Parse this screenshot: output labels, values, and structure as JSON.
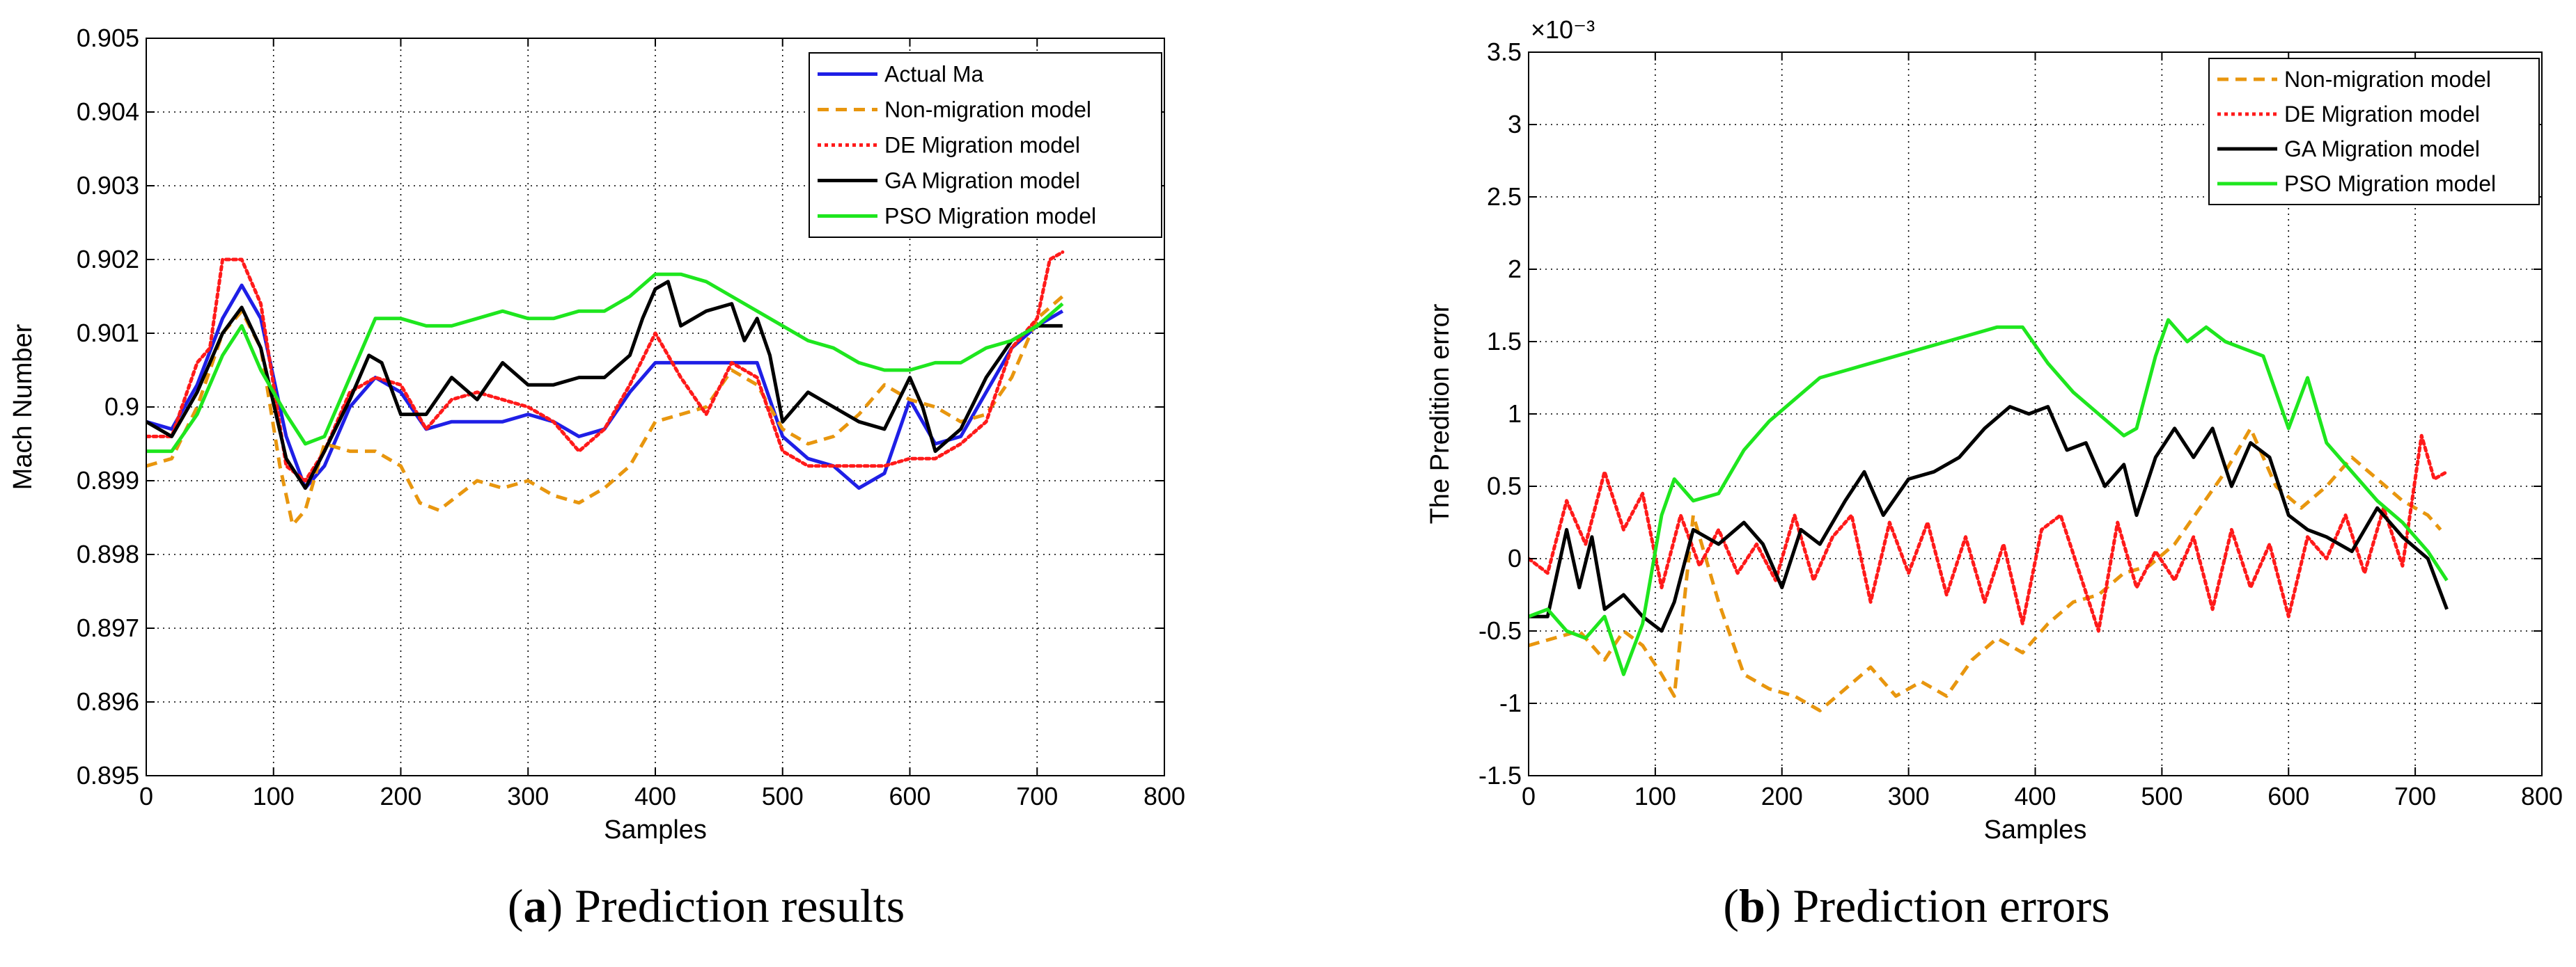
{
  "colors": {
    "actual": "#1f1fe6",
    "non_migration": "#e8960e",
    "de": "#ff1a1a",
    "ga": "#000000",
    "pso": "#1ee61e"
  },
  "chart_data": [
    {
      "type": "line",
      "panel": "a",
      "caption_letter": "a",
      "caption_title": " Prediction results",
      "xlabel": "Samples",
      "ylabel": "Mach Number",
      "xlim": [
        0,
        800
      ],
      "ylim": [
        0.895,
        0.905
      ],
      "xticks": [
        0,
        100,
        200,
        300,
        400,
        500,
        600,
        700,
        800
      ],
      "xtick_labels": [
        "0",
        "100",
        "200",
        "300",
        "400",
        "500",
        "600",
        "700",
        "800"
      ],
      "yticks": [
        0.895,
        0.896,
        0.897,
        0.898,
        0.899,
        0.9,
        0.901,
        0.902,
        0.903,
        0.904,
        0.905
      ],
      "ytick_labels": [
        "0.895",
        "0.896",
        "0.897",
        "0.898",
        "0.899",
        "0.9",
        "0.901",
        "0.902",
        "0.903",
        "0.904",
        "0.905"
      ],
      "exponent_label": "",
      "grid": true,
      "legend_position": "top-right",
      "series": [
        {
          "name": "Actual Ma",
          "color_key": "actual",
          "style": "solid",
          "x": [
            0,
            20,
            40,
            60,
            75,
            90,
            110,
            125,
            140,
            160,
            180,
            200,
            220,
            240,
            260,
            280,
            300,
            320,
            340,
            360,
            380,
            400,
            420,
            440,
            460,
            480,
            500,
            520,
            540,
            560,
            580,
            600,
            620,
            640,
            660,
            680,
            700,
            720
          ],
          "y": [
            0.8998,
            0.8997,
            0.9003,
            0.9012,
            0.90165,
            0.9012,
            0.8996,
            0.8989,
            0.8992,
            0.9,
            0.9004,
            0.9002,
            0.8997,
            0.8998,
            0.8998,
            0.8998,
            0.8999,
            0.8998,
            0.8996,
            0.8997,
            0.9002,
            0.9006,
            0.9006,
            0.9006,
            0.9006,
            0.9006,
            0.8996,
            0.8993,
            0.8992,
            0.8989,
            0.8991,
            0.9001,
            0.8995,
            0.8996,
            0.9002,
            0.9008,
            0.9011,
            0.9013
          ]
        },
        {
          "name": "Non-migration model",
          "color_key": "non_migration",
          "style": "dashed",
          "x": [
            0,
            20,
            40,
            60,
            75,
            90,
            105,
            115,
            125,
            140,
            160,
            180,
            200,
            215,
            230,
            260,
            280,
            300,
            320,
            340,
            360,
            380,
            400,
            420,
            440,
            460,
            480,
            500,
            520,
            540,
            560,
            580,
            600,
            620,
            640,
            660,
            680,
            700,
            720
          ],
          "y": [
            0.8992,
            0.8993,
            0.9,
            0.901,
            0.9013,
            0.9008,
            0.8992,
            0.8984,
            0.8986,
            0.8995,
            0.8994,
            0.8994,
            0.8992,
            0.8987,
            0.8986,
            0.899,
            0.8989,
            0.899,
            0.8988,
            0.8987,
            0.8989,
            0.8992,
            0.8998,
            0.8999,
            0.9,
            0.9005,
            0.9003,
            0.8997,
            0.8995,
            0.8996,
            0.8999,
            0.9003,
            0.9001,
            0.9,
            0.8998,
            0.8999,
            0.9004,
            0.9012,
            0.9015
          ]
        },
        {
          "name": "DE Migration model",
          "color_key": "de",
          "style": "dotted",
          "x": [
            0,
            20,
            40,
            50,
            60,
            75,
            90,
            110,
            125,
            140,
            160,
            180,
            200,
            220,
            240,
            260,
            280,
            300,
            320,
            340,
            360,
            380,
            400,
            410,
            420,
            440,
            460,
            480,
            500,
            520,
            540,
            560,
            580,
            600,
            620,
            640,
            660,
            680,
            700,
            710,
            720
          ],
          "y": [
            0.8996,
            0.8996,
            0.9006,
            0.9008,
            0.902,
            0.902,
            0.9014,
            0.8992,
            0.899,
            0.8994,
            0.9002,
            0.9004,
            0.9003,
            0.8997,
            0.9001,
            0.9002,
            0.9001,
            0.9,
            0.8998,
            0.8994,
            0.8997,
            0.9003,
            0.901,
            0.9007,
            0.9004,
            0.8999,
            0.9006,
            0.9004,
            0.8994,
            0.8992,
            0.8992,
            0.8992,
            0.8992,
            0.8993,
            0.8993,
            0.8995,
            0.8998,
            0.9008,
            0.9012,
            0.902,
            0.9021
          ]
        },
        {
          "name": "GA Migration model",
          "color_key": "ga",
          "style": "solid",
          "x": [
            0,
            20,
            40,
            60,
            75,
            90,
            110,
            125,
            140,
            160,
            175,
            185,
            200,
            220,
            240,
            260,
            280,
            300,
            320,
            340,
            360,
            380,
            390,
            400,
            410,
            420,
            440,
            460,
            470,
            480,
            490,
            500,
            520,
            540,
            560,
            580,
            600,
            610,
            620,
            640,
            660,
            680,
            700,
            720
          ],
          "y": [
            0.8998,
            0.8996,
            0.9002,
            0.901,
            0.90135,
            0.9008,
            0.8993,
            0.8989,
            0.8994,
            0.9001,
            0.9007,
            0.9006,
            0.8999,
            0.8999,
            0.9004,
            0.9001,
            0.9006,
            0.9003,
            0.9003,
            0.9004,
            0.9004,
            0.9007,
            0.9012,
            0.9016,
            0.9017,
            0.9011,
            0.9013,
            0.9014,
            0.9009,
            0.9012,
            0.9007,
            0.8998,
            0.9002,
            0.9,
            0.8998,
            0.8997,
            0.9004,
            0.9,
            0.8994,
            0.8997,
            0.9004,
            0.9009,
            0.9011,
            0.9011
          ]
        },
        {
          "name": "PSO Migration model",
          "color_key": "pso",
          "style": "solid",
          "x": [
            0,
            20,
            40,
            60,
            75,
            90,
            110,
            125,
            140,
            160,
            180,
            200,
            220,
            240,
            260,
            280,
            300,
            320,
            340,
            360,
            380,
            400,
            420,
            440,
            460,
            480,
            500,
            520,
            540,
            560,
            580,
            600,
            620,
            640,
            660,
            680,
            700,
            720
          ],
          "y": [
            0.8994,
            0.8994,
            0.8999,
            0.9007,
            0.9011,
            0.9005,
            0.8999,
            0.8995,
            0.8996,
            0.9004,
            0.9012,
            0.9012,
            0.9011,
            0.9011,
            0.9012,
            0.9013,
            0.9012,
            0.9012,
            0.9013,
            0.9013,
            0.9015,
            0.9018,
            0.9018,
            0.9017,
            0.9015,
            0.9013,
            0.9011,
            0.9009,
            0.9008,
            0.9006,
            0.9005,
            0.9005,
            0.9006,
            0.9006,
            0.9008,
            0.9009,
            0.9011,
            0.9014
          ]
        }
      ]
    },
    {
      "type": "line",
      "panel": "b",
      "caption_letter": "b",
      "caption_title": " Prediction errors",
      "xlabel": "Samples",
      "ylabel": "The Predition error",
      "xlim": [
        0,
        800
      ],
      "ylim": [
        -1.5,
        3.5
      ],
      "y_scale_note": "values in units of 10^-3",
      "xticks": [
        0,
        100,
        200,
        300,
        400,
        500,
        600,
        700,
        800
      ],
      "xtick_labels": [
        "0",
        "100",
        "200",
        "300",
        "400",
        "500",
        "600",
        "700",
        "800"
      ],
      "yticks": [
        -1.5,
        -1,
        -0.5,
        0,
        0.5,
        1,
        1.5,
        2,
        2.5,
        3,
        3.5
      ],
      "ytick_labels": [
        "-1.5",
        "-1",
        "-0.5",
        "0",
        "0.5",
        "1",
        "1.5",
        "2",
        "2.5",
        "3",
        "3.5"
      ],
      "exponent_label": "×10⁻³",
      "grid": true,
      "legend_position": "top-right",
      "series": [
        {
          "name": "Non-migration model",
          "color_key": "non_migration",
          "style": "dashed",
          "x": [
            0,
            20,
            40,
            60,
            75,
            90,
            105,
            115,
            130,
            150,
            170,
            190,
            210,
            230,
            250,
            270,
            290,
            310,
            330,
            350,
            370,
            390,
            410,
            430,
            450,
            470,
            490,
            510,
            530,
            550,
            570,
            590,
            610,
            630,
            650,
            670,
            690,
            710,
            720
          ],
          "y": [
            -0.6,
            -0.55,
            -0.5,
            -0.7,
            -0.5,
            -0.6,
            -0.8,
            -0.95,
            0.3,
            -0.3,
            -0.8,
            -0.9,
            -0.95,
            -1.05,
            -0.9,
            -0.75,
            -0.95,
            -0.85,
            -0.95,
            -0.7,
            -0.55,
            -0.65,
            -0.45,
            -0.3,
            -0.25,
            -0.1,
            -0.05,
            0.1,
            0.35,
            0.6,
            0.9,
            0.5,
            0.35,
            0.5,
            0.7,
            0.55,
            0.4,
            0.3,
            0.2
          ]
        },
        {
          "name": "DE Migration model",
          "color_key": "de",
          "style": "dotted",
          "x": [
            0,
            15,
            30,
            45,
            60,
            75,
            90,
            105,
            120,
            135,
            150,
            165,
            180,
            195,
            210,
            225,
            240,
            255,
            270,
            285,
            300,
            315,
            330,
            345,
            360,
            375,
            390,
            405,
            420,
            435,
            450,
            465,
            480,
            495,
            510,
            525,
            540,
            555,
            570,
            585,
            600,
            615,
            630,
            645,
            660,
            675,
            690,
            705,
            715,
            725
          ],
          "y": [
            0.0,
            -0.1,
            0.4,
            0.1,
            0.6,
            0.2,
            0.45,
            -0.2,
            0.3,
            -0.05,
            0.2,
            -0.1,
            0.1,
            -0.15,
            0.3,
            -0.15,
            0.15,
            0.3,
            -0.3,
            0.25,
            -0.1,
            0.25,
            -0.25,
            0.15,
            -0.3,
            0.1,
            -0.45,
            0.2,
            0.3,
            -0.1,
            -0.5,
            0.25,
            -0.2,
            0.05,
            -0.15,
            0.15,
            -0.35,
            0.2,
            -0.2,
            0.1,
            -0.4,
            0.15,
            0.0,
            0.3,
            -0.1,
            0.35,
            -0.05,
            0.85,
            0.55,
            0.6
          ]
        },
        {
          "name": "GA Migration model",
          "color_key": "ga",
          "style": "solid",
          "x": [
            0,
            15,
            30,
            40,
            50,
            60,
            75,
            90,
            105,
            115,
            130,
            150,
            170,
            185,
            200,
            215,
            230,
            250,
            265,
            280,
            300,
            320,
            340,
            360,
            380,
            395,
            410,
            425,
            440,
            455,
            470,
            480,
            495,
            510,
            525,
            540,
            555,
            570,
            585,
            600,
            615,
            630,
            650,
            670,
            690,
            710,
            725
          ],
          "y": [
            -0.4,
            -0.4,
            0.2,
            -0.2,
            0.15,
            -0.35,
            -0.25,
            -0.4,
            -0.5,
            -0.3,
            0.2,
            0.1,
            0.25,
            0.1,
            -0.2,
            0.2,
            0.1,
            0.4,
            0.6,
            0.3,
            0.55,
            0.6,
            0.7,
            0.9,
            1.05,
            1.0,
            1.05,
            0.75,
            0.8,
            0.5,
            0.65,
            0.3,
            0.7,
            0.9,
            0.7,
            0.9,
            0.5,
            0.8,
            0.7,
            0.3,
            0.2,
            0.15,
            0.05,
            0.35,
            0.15,
            0.0,
            -0.35
          ]
        },
        {
          "name": "PSO Migration model",
          "color_key": "pso",
          "style": "solid",
          "x": [
            0,
            15,
            30,
            45,
            60,
            75,
            90,
            105,
            115,
            130,
            150,
            170,
            190,
            210,
            230,
            250,
            270,
            290,
            310,
            330,
            350,
            370,
            390,
            410,
            430,
            450,
            470,
            480,
            495,
            505,
            520,
            535,
            550,
            565,
            580,
            600,
            615,
            630,
            650,
            670,
            690,
            710,
            725
          ],
          "y": [
            -0.4,
            -0.35,
            -0.5,
            -0.55,
            -0.4,
            -0.8,
            -0.45,
            0.3,
            0.55,
            0.4,
            0.45,
            0.75,
            0.95,
            1.1,
            1.25,
            1.3,
            1.35,
            1.4,
            1.45,
            1.5,
            1.55,
            1.6,
            1.6,
            1.35,
            1.15,
            1.0,
            0.85,
            0.9,
            1.4,
            1.65,
            1.5,
            1.6,
            1.5,
            1.45,
            1.4,
            0.9,
            1.25,
            0.8,
            0.6,
            0.4,
            0.25,
            0.05,
            -0.15
          ]
        }
      ]
    }
  ]
}
